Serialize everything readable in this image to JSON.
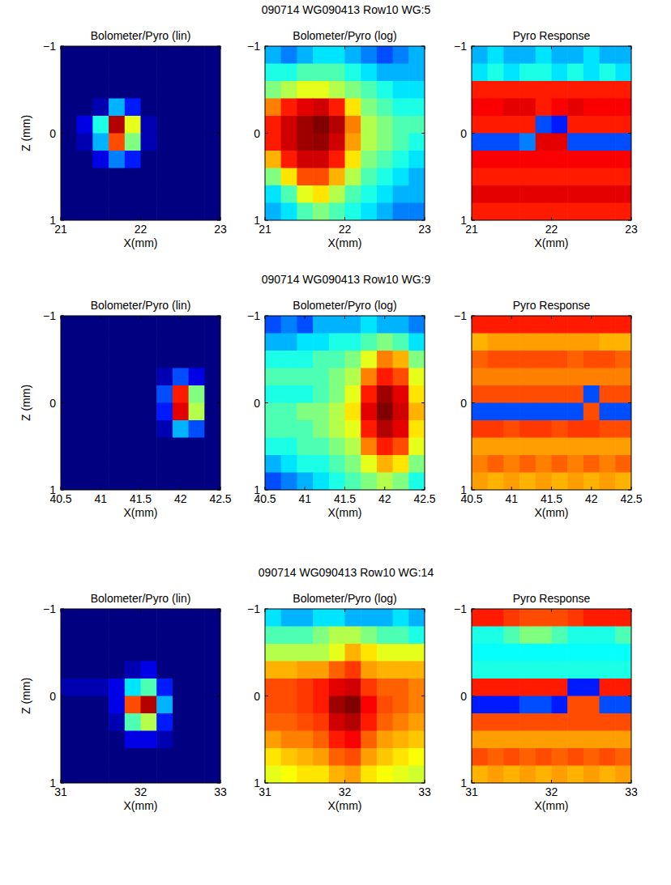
{
  "rows": [
    {
      "title": "090714 WG090413 Row10 WG:5"
    },
    {
      "title": "090714 WG090413 Row10 WG:9"
    },
    {
      "title": "090714 WG090413 Row10 WG:14"
    }
  ],
  "chart_data": [
    {
      "type": "heatmap",
      "title": "Bolometer/Pyro (lin)",
      "x_label": "X(mm)",
      "y_label": "Z (mm)",
      "xlim": [
        21,
        23
      ],
      "xticks": [
        21,
        22,
        23
      ],
      "ylim": [
        -1,
        1
      ],
      "yticks": [
        {
          "value": -1,
          "label": "−1"
        },
        0,
        1
      ],
      "zlim": [
        0,
        1
      ],
      "z": [
        [
          0,
          0,
          0,
          0,
          0,
          0,
          0,
          0,
          0,
          0
        ],
        [
          0,
          0,
          0,
          0,
          0,
          0,
          0,
          0,
          0,
          0
        ],
        [
          0,
          0,
          0,
          0,
          0,
          0,
          0,
          0,
          0,
          0
        ],
        [
          0,
          0,
          0.05,
          0.3,
          0.15,
          0,
          0,
          0,
          0,
          0
        ],
        [
          0,
          0.1,
          0.4,
          0.95,
          0.6,
          0.05,
          0,
          0,
          0,
          0
        ],
        [
          0,
          0.05,
          0.3,
          0.8,
          0.5,
          0.05,
          0,
          0,
          0,
          0
        ],
        [
          0,
          0,
          0.1,
          0.25,
          0.15,
          0,
          0,
          0,
          0,
          0
        ],
        [
          0,
          0,
          0,
          0,
          0,
          0,
          0,
          0,
          0,
          0
        ],
        [
          0,
          0,
          0,
          0,
          0,
          0,
          0,
          0,
          0,
          0
        ],
        [
          0,
          0,
          0,
          0,
          0,
          0,
          0,
          0,
          0,
          0
        ]
      ]
    },
    {
      "type": "heatmap",
      "title": "Bolometer/Pyro (log)",
      "x_label": "X(mm)",
      "xlim": [
        21,
        23
      ],
      "xticks": [
        21,
        22,
        23
      ],
      "ylim": [
        -1,
        1
      ],
      "yticks": [
        {
          "value": -1,
          "label": "−1"
        },
        0,
        1
      ],
      "zlim": [
        0,
        1
      ],
      "z": [
        [
          0.3,
          0.25,
          0.3,
          0.35,
          0.35,
          0.3,
          0.25,
          0.2,
          0.25,
          0.3
        ],
        [
          0.4,
          0.4,
          0.45,
          0.45,
          0.45,
          0.4,
          0.35,
          0.3,
          0.3,
          0.3
        ],
        [
          0.5,
          0.55,
          0.6,
          0.6,
          0.55,
          0.5,
          0.45,
          0.4,
          0.35,
          0.35
        ],
        [
          0.75,
          0.85,
          0.9,
          0.92,
          0.85,
          0.65,
          0.5,
          0.45,
          0.4,
          0.4
        ],
        [
          0.85,
          0.92,
          0.97,
          1,
          0.95,
          0.75,
          0.55,
          0.5,
          0.45,
          0.45
        ],
        [
          0.85,
          0.92,
          0.97,
          0.98,
          0.92,
          0.72,
          0.55,
          0.5,
          0.45,
          0.4
        ],
        [
          0.7,
          0.85,
          0.92,
          0.92,
          0.85,
          0.65,
          0.5,
          0.45,
          0.4,
          0.35
        ],
        [
          0.5,
          0.65,
          0.8,
          0.8,
          0.7,
          0.55,
          0.45,
          0.4,
          0.35,
          0.3
        ],
        [
          0.35,
          0.45,
          0.6,
          0.65,
          0.55,
          0.45,
          0.4,
          0.35,
          0.3,
          0.3
        ],
        [
          0.3,
          0.35,
          0.45,
          0.5,
          0.45,
          0.4,
          0.35,
          0.3,
          0.25,
          0.25
        ]
      ]
    },
    {
      "type": "heatmap",
      "title": "Pyro Response",
      "x_label": "X(mm)",
      "xlim": [
        21,
        23
      ],
      "xticks": [
        21,
        22,
        23
      ],
      "ylim": [
        -1,
        1
      ],
      "yticks": [
        {
          "value": -1,
          "label": "−1"
        },
        0,
        1
      ],
      "zlim": [
        0,
        1
      ],
      "z": [
        [
          0.3,
          0.35,
          0.3,
          0.3,
          0.35,
          0.3,
          0.3,
          0.35,
          0.3,
          0.3
        ],
        [
          0.35,
          0.4,
          0.35,
          0.4,
          0.4,
          0.35,
          0.4,
          0.35,
          0.4,
          0.35
        ],
        [
          0.85,
          0.85,
          0.85,
          0.85,
          0.85,
          0.85,
          0.85,
          0.85,
          0.85,
          0.85
        ],
        [
          0.88,
          0.88,
          0.9,
          0.9,
          0.85,
          0.88,
          0.9,
          0.88,
          0.88,
          0.88
        ],
        [
          0.85,
          0.85,
          0.85,
          0.85,
          0.2,
          0.15,
          0.85,
          0.85,
          0.85,
          0.85
        ],
        [
          0.2,
          0.2,
          0.2,
          0.25,
          0.9,
          0.9,
          0.2,
          0.2,
          0.2,
          0.2
        ],
        [
          0.88,
          0.88,
          0.88,
          0.88,
          0.88,
          0.88,
          0.88,
          0.88,
          0.88,
          0.88
        ],
        [
          0.85,
          0.85,
          0.85,
          0.85,
          0.85,
          0.85,
          0.85,
          0.85,
          0.85,
          0.85
        ],
        [
          0.9,
          0.9,
          0.9,
          0.9,
          0.9,
          0.9,
          0.9,
          0.9,
          0.9,
          0.9
        ],
        [
          0.85,
          0.85,
          0.85,
          0.85,
          0.85,
          0.85,
          0.85,
          0.85,
          0.85,
          0.85
        ]
      ]
    },
    {
      "type": "heatmap",
      "title": "Bolometer/Pyro (lin)",
      "x_label": "X(mm)",
      "y_label": "Z (mm)",
      "xlim": [
        40.5,
        42.5
      ],
      "xticks": [
        40.5,
        41,
        41.5,
        42,
        42.5
      ],
      "ylim": [
        -1,
        1
      ],
      "yticks": [
        {
          "value": -1,
          "label": "−1"
        },
        0,
        1
      ],
      "zlim": [
        0,
        1
      ],
      "z": [
        [
          0,
          0,
          0,
          0,
          0,
          0,
          0,
          0,
          0,
          0
        ],
        [
          0,
          0,
          0,
          0,
          0,
          0,
          0,
          0,
          0,
          0
        ],
        [
          0,
          0,
          0,
          0,
          0,
          0,
          0,
          0,
          0,
          0
        ],
        [
          0,
          0,
          0,
          0,
          0,
          0,
          0.05,
          0.2,
          0.1,
          0
        ],
        [
          0,
          0,
          0,
          0,
          0,
          0,
          0.2,
          0.85,
          0.5,
          0
        ],
        [
          0,
          0,
          0,
          0,
          0,
          0,
          0.15,
          0.9,
          0.55,
          0
        ],
        [
          0,
          0,
          0,
          0,
          0,
          0,
          0.05,
          0.3,
          0.2,
          0
        ],
        [
          0,
          0,
          0,
          0,
          0,
          0,
          0,
          0,
          0,
          0
        ],
        [
          0,
          0,
          0,
          0,
          0,
          0,
          0,
          0,
          0,
          0
        ],
        [
          0,
          0,
          0,
          0,
          0,
          0,
          0,
          0,
          0,
          0
        ]
      ]
    },
    {
      "type": "heatmap",
      "title": "Bolometer/Pyro (log)",
      "x_label": "X(mm)",
      "xlim": [
        40.5,
        42.5
      ],
      "xticks": [
        40.5,
        41,
        41.5,
        42,
        42.5
      ],
      "ylim": [
        -1,
        1
      ],
      "yticks": [
        {
          "value": -1,
          "label": "−1"
        },
        0,
        1
      ],
      "zlim": [
        0,
        1
      ],
      "z": [
        [
          0.2,
          0.25,
          0.2,
          0.3,
          0.3,
          0.3,
          0.35,
          0.3,
          0.3,
          0.25
        ],
        [
          0.3,
          0.3,
          0.35,
          0.35,
          0.4,
          0.4,
          0.45,
          0.5,
          0.45,
          0.35
        ],
        [
          0.4,
          0.4,
          0.4,
          0.45,
          0.45,
          0.5,
          0.6,
          0.75,
          0.7,
          0.5
        ],
        [
          0.45,
          0.45,
          0.45,
          0.45,
          0.5,
          0.55,
          0.75,
          0.85,
          0.8,
          0.6
        ],
        [
          0.4,
          0.4,
          0.4,
          0.45,
          0.5,
          0.6,
          0.85,
          0.97,
          0.9,
          0.65
        ],
        [
          0.45,
          0.45,
          0.5,
          0.5,
          0.55,
          0.65,
          0.9,
          1,
          0.92,
          0.7
        ],
        [
          0.45,
          0.45,
          0.45,
          0.5,
          0.55,
          0.6,
          0.85,
          0.95,
          0.9,
          0.65
        ],
        [
          0.4,
          0.4,
          0.45,
          0.45,
          0.5,
          0.55,
          0.75,
          0.85,
          0.8,
          0.6
        ],
        [
          0.3,
          0.35,
          0.4,
          0.4,
          0.45,
          0.5,
          0.6,
          0.7,
          0.65,
          0.5
        ],
        [
          0.2,
          0.25,
          0.3,
          0.35,
          0.4,
          0.45,
          0.5,
          0.55,
          0.5,
          0.4
        ]
      ]
    },
    {
      "type": "heatmap",
      "title": "Pyro Response",
      "x_label": "X(mm)",
      "xlim": [
        40.5,
        42.5
      ],
      "xticks": [
        40.5,
        41,
        41.5,
        42,
        42.5
      ],
      "ylim": [
        -1,
        1
      ],
      "yticks": [
        {
          "value": -1,
          "label": "−1"
        },
        0,
        1
      ],
      "zlim": [
        0,
        1
      ],
      "z": [
        [
          0.85,
          0.85,
          0.85,
          0.85,
          0.85,
          0.85,
          0.85,
          0.85,
          0.85,
          0.85
        ],
        [
          0.7,
          0.72,
          0.72,
          0.72,
          0.72,
          0.72,
          0.72,
          0.72,
          0.7,
          0.7
        ],
        [
          0.78,
          0.8,
          0.8,
          0.8,
          0.8,
          0.8,
          0.78,
          0.8,
          0.8,
          0.78
        ],
        [
          0.75,
          0.75,
          0.75,
          0.75,
          0.75,
          0.75,
          0.75,
          0.75,
          0.75,
          0.75
        ],
        [
          0.8,
          0.8,
          0.8,
          0.8,
          0.8,
          0.8,
          0.8,
          0.2,
          0.8,
          0.8
        ],
        [
          0.2,
          0.2,
          0.2,
          0.2,
          0.2,
          0.2,
          0.2,
          0.8,
          0.2,
          0.2
        ],
        [
          0.82,
          0.82,
          0.8,
          0.82,
          0.82,
          0.8,
          0.82,
          0.82,
          0.8,
          0.8
        ],
        [
          0.72,
          0.72,
          0.72,
          0.72,
          0.72,
          0.72,
          0.72,
          0.72,
          0.72,
          0.72
        ],
        [
          0.75,
          0.78,
          0.75,
          0.78,
          0.75,
          0.78,
          0.75,
          0.78,
          0.75,
          0.78
        ],
        [
          0.72,
          0.7,
          0.72,
          0.7,
          0.72,
          0.7,
          0.72,
          0.7,
          0.72,
          0.7
        ]
      ]
    },
    {
      "type": "heatmap",
      "title": "Bolometer/Pyro (lin)",
      "x_label": "X(mm)",
      "y_label": "Z (mm)",
      "xlim": [
        31,
        33
      ],
      "xticks": [
        31,
        32,
        33
      ],
      "ylim": [
        -1,
        1
      ],
      "yticks": [
        {
          "value": -1,
          "label": "−1"
        },
        0,
        1
      ],
      "zlim": [
        0,
        1
      ],
      "z": [
        [
          0,
          0,
          0,
          0,
          0,
          0,
          0,
          0,
          0,
          0
        ],
        [
          0,
          0,
          0,
          0,
          0,
          0,
          0,
          0,
          0,
          0
        ],
        [
          0,
          0,
          0,
          0,
          0,
          0,
          0,
          0,
          0,
          0
        ],
        [
          0,
          0,
          0,
          0,
          0.05,
          0.1,
          0,
          0,
          0,
          0
        ],
        [
          0.05,
          0.05,
          0.05,
          0.1,
          0.35,
          0.45,
          0.15,
          0,
          0,
          0
        ],
        [
          0,
          0,
          0,
          0.1,
          0.8,
          0.95,
          0.3,
          0,
          0,
          0
        ],
        [
          0,
          0,
          0,
          0.05,
          0.45,
          0.55,
          0.15,
          0,
          0,
          0
        ],
        [
          0,
          0,
          0,
          0,
          0.1,
          0.1,
          0.05,
          0,
          0,
          0
        ],
        [
          0,
          0,
          0,
          0,
          0,
          0,
          0,
          0,
          0,
          0
        ],
        [
          0,
          0,
          0,
          0,
          0,
          0,
          0,
          0,
          0,
          0
        ]
      ]
    },
    {
      "type": "heatmap",
      "title": "Bolometer/Pyro (log)",
      "x_label": "X(mm)",
      "xlim": [
        31,
        33
      ],
      "xticks": [
        31,
        32,
        33
      ],
      "ylim": [
        -1,
        1
      ],
      "yticks": [
        {
          "value": -1,
          "label": "−1"
        },
        0,
        1
      ],
      "zlim": [
        0,
        1
      ],
      "z": [
        [
          0.35,
          0.3,
          0.3,
          0.35,
          0.35,
          0.3,
          0.3,
          0.3,
          0.35,
          0.3
        ],
        [
          0.45,
          0.45,
          0.45,
          0.5,
          0.55,
          0.55,
          0.5,
          0.45,
          0.45,
          0.4
        ],
        [
          0.55,
          0.55,
          0.55,
          0.55,
          0.6,
          0.7,
          0.65,
          0.6,
          0.6,
          0.6
        ],
        [
          0.7,
          0.7,
          0.72,
          0.72,
          0.78,
          0.82,
          0.72,
          0.7,
          0.7,
          0.7
        ],
        [
          0.8,
          0.8,
          0.82,
          0.85,
          0.9,
          0.92,
          0.82,
          0.78,
          0.78,
          0.75
        ],
        [
          0.8,
          0.8,
          0.82,
          0.85,
          0.97,
          1,
          0.88,
          0.8,
          0.78,
          0.75
        ],
        [
          0.78,
          0.78,
          0.8,
          0.82,
          0.92,
          0.95,
          0.85,
          0.78,
          0.75,
          0.72
        ],
        [
          0.72,
          0.75,
          0.75,
          0.78,
          0.85,
          0.88,
          0.78,
          0.72,
          0.7,
          0.68
        ],
        [
          0.65,
          0.68,
          0.7,
          0.72,
          0.78,
          0.8,
          0.72,
          0.68,
          0.65,
          0.62
        ],
        [
          0.6,
          0.62,
          0.65,
          0.65,
          0.7,
          0.72,
          0.65,
          0.62,
          0.6,
          0.58
        ]
      ]
    },
    {
      "type": "heatmap",
      "title": "Pyro Response",
      "x_label": "X(mm)",
      "xlim": [
        31,
        33
      ],
      "xticks": [
        31,
        32,
        33
      ],
      "ylim": [
        -1,
        1
      ],
      "yticks": [
        {
          "value": -1,
          "label": "−1"
        },
        0,
        1
      ],
      "zlim": [
        0,
        1
      ],
      "z": [
        [
          0.85,
          0.85,
          0.82,
          0.8,
          0.8,
          0.8,
          0.82,
          0.85,
          0.85,
          0.85
        ],
        [
          0.4,
          0.4,
          0.45,
          0.5,
          0.5,
          0.45,
          0.4,
          0.4,
          0.4,
          0.45
        ],
        [
          0.38,
          0.38,
          0.38,
          0.38,
          0.38,
          0.38,
          0.38,
          0.38,
          0.38,
          0.38
        ],
        [
          0.4,
          0.4,
          0.4,
          0.4,
          0.4,
          0.4,
          0.4,
          0.4,
          0.4,
          0.4
        ],
        [
          0.85,
          0.85,
          0.85,
          0.85,
          0.85,
          0.85,
          0.15,
          0.15,
          0.85,
          0.85
        ],
        [
          0.15,
          0.15,
          0.15,
          0.2,
          0.2,
          0.15,
          0.8,
          0.8,
          0.2,
          0.2
        ],
        [
          0.8,
          0.8,
          0.8,
          0.8,
          0.8,
          0.8,
          0.8,
          0.8,
          0.8,
          0.8
        ],
        [
          0.72,
          0.72,
          0.72,
          0.72,
          0.72,
          0.72,
          0.72,
          0.72,
          0.72,
          0.72
        ],
        [
          0.8,
          0.78,
          0.8,
          0.78,
          0.8,
          0.78,
          0.8,
          0.78,
          0.8,
          0.78
        ],
        [
          0.7,
          0.72,
          0.7,
          0.72,
          0.7,
          0.72,
          0.7,
          0.72,
          0.7,
          0.72
        ]
      ]
    }
  ]
}
